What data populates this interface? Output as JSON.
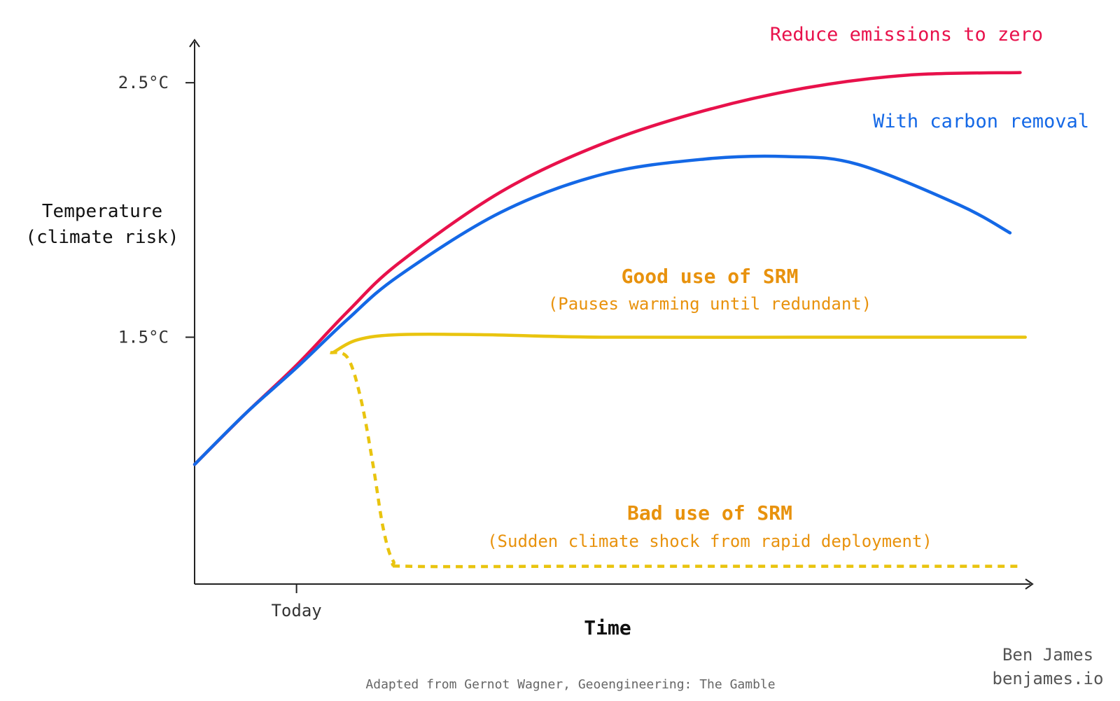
{
  "chart_data": {
    "type": "line",
    "ylabel": [
      "Temperature",
      "(climate risk)"
    ],
    "xlabel": "Time",
    "x_ticks": [
      {
        "label": "Today",
        "x": 1
      }
    ],
    "y_ticks": [
      {
        "label": "2.5°C",
        "y": 2.5
      },
      {
        "label": "1.5°C",
        "y": 1.5
      }
    ],
    "xlim": [
      0,
      8.2
    ],
    "ylim": [
      0.53,
      2.66
    ],
    "series": [
      {
        "name": "Reduce emissions to zero",
        "color": "#e8114b",
        "style": "solid",
        "points": [
          [
            0,
            1.0
          ],
          [
            0.5,
            1.2
          ],
          [
            1.0,
            1.39
          ],
          [
            1.5,
            1.6
          ],
          [
            2.0,
            1.79
          ],
          [
            3.0,
            2.07
          ],
          [
            4.0,
            2.26
          ],
          [
            5.0,
            2.39
          ],
          [
            6.0,
            2.48
          ],
          [
            7.0,
            2.53
          ],
          [
            8.1,
            2.54
          ]
        ]
      },
      {
        "name": "With carbon removal",
        "color": "#1468e6",
        "style": "solid",
        "points": [
          [
            0,
            1.0
          ],
          [
            0.5,
            1.2
          ],
          [
            1.0,
            1.38
          ],
          [
            1.5,
            1.57
          ],
          [
            2.0,
            1.74
          ],
          [
            3.0,
            1.99
          ],
          [
            4.0,
            2.14
          ],
          [
            5.0,
            2.2
          ],
          [
            5.8,
            2.21
          ],
          [
            6.5,
            2.18
          ],
          [
            7.5,
            2.02
          ],
          [
            8.0,
            1.91
          ]
        ]
      },
      {
        "name": "Good use of SRM",
        "subtitle": "(Pauses warming until redundant)",
        "color": "#e9c40f",
        "label_color": "#e8920d",
        "style": "solid",
        "points": [
          [
            1.36,
            1.44
          ],
          [
            1.6,
            1.49
          ],
          [
            2.0,
            1.51
          ],
          [
            2.8,
            1.51
          ],
          [
            4.0,
            1.5
          ],
          [
            6.0,
            1.5
          ],
          [
            8.15,
            1.5
          ]
        ]
      },
      {
        "name": "Bad use of SRM",
        "subtitle": "(Sudden climate shock from rapid deployment)",
        "color": "#e9c40f",
        "label_color": "#e8920d",
        "style": "dashed",
        "points": [
          [
            1.33,
            1.44
          ],
          [
            1.5,
            1.42
          ],
          [
            1.63,
            1.26
          ],
          [
            1.75,
            1.0
          ],
          [
            1.85,
            0.75
          ],
          [
            1.95,
            0.62
          ],
          [
            2.1,
            0.6
          ],
          [
            4.0,
            0.6
          ],
          [
            8.1,
            0.6
          ]
        ]
      }
    ],
    "annotations": {
      "credit": [
        "Ben James",
        "benjames.io"
      ],
      "source": "Adapted from Gernot Wagner, Geoengineering: The Gamble"
    }
  }
}
